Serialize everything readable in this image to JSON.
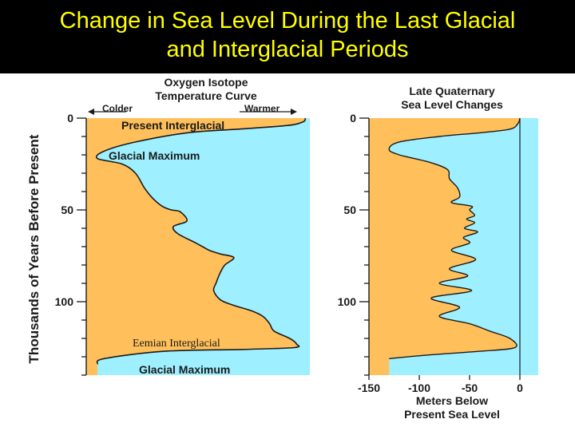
{
  "slide": {
    "title_line1": "Change in Sea Level During the Last Glacial",
    "title_line2": "and Interglacial Periods"
  },
  "y_axis_label": "Thousands of Years Before Present",
  "colors": {
    "warm_fill": "#ffc05c",
    "cool_fill": "#9eefff",
    "line": "#1a1a1a",
    "title_bg": "#000000",
    "title_text": "#ffff00"
  },
  "chart_data": [
    {
      "type": "area",
      "title_line1": "Oxygen Isotope",
      "title_line2": "Temperature Curve",
      "x_direction": {
        "left": "Colder",
        "right": "Warmer"
      },
      "y_ticks": [
        "0",
        "50",
        "100"
      ],
      "ylim": [
        0,
        140
      ],
      "x_range": [
        0,
        1
      ],
      "annotations": {
        "present": "Present Interglacial",
        "glacial1": "Glacial Maximum",
        "eemian": "Eemian Interglacial",
        "glacial2": "Glacial Maximum"
      },
      "series": [
        {
          "x": [
            0.98,
            0.97,
            0.9,
            0.68,
            0.45,
            0.22,
            0.08,
            0.05,
            0.16,
            0.22,
            0.26,
            0.3,
            0.34,
            0.38,
            0.42,
            0.45,
            0.39,
            0.41,
            0.49,
            0.52,
            0.55,
            0.6,
            0.66,
            0.62,
            0.6,
            0.58,
            0.57,
            0.6,
            0.66,
            0.74,
            0.79,
            0.82,
            0.84,
            0.91,
            0.94,
            0.93,
            0.7,
            0.35,
            0.08,
            0.05
          ],
          "y": [
            0,
            2,
            4,
            6,
            8,
            13,
            18,
            22,
            25,
            30,
            38,
            44,
            48,
            50,
            51,
            56,
            59,
            63,
            68,
            70,
            72,
            74,
            76,
            80,
            84,
            90,
            94,
            99,
            102,
            105,
            108,
            112,
            116,
            120,
            123,
            125,
            126,
            127,
            131,
            134
          ]
        }
      ]
    },
    {
      "type": "area",
      "title_line1": "Late Quaternary",
      "title_line2": "Sea Level Changes",
      "y_ticks": [
        "0",
        "50",
        "100"
      ],
      "x_ticks": [
        "-150",
        "-100",
        "-50",
        "0"
      ],
      "xlabel_line1": "Meters Below",
      "xlabel_line2": "Present Sea Level",
      "ylim": [
        0,
        140
      ],
      "xlim": [
        -150,
        0
      ],
      "series": [
        {
          "x": [
            0,
            -2,
            -10,
            -40,
            -80,
            -120,
            -130,
            -120,
            -90,
            -72,
            -70,
            -62,
            -60,
            -68,
            -48,
            -50,
            -45,
            -53,
            -45,
            -55,
            -42,
            -56,
            -50,
            -68,
            -44,
            -70,
            -52,
            -80,
            -48,
            -88,
            -60,
            -80,
            -50,
            -30,
            -10,
            -5,
            -40,
            -90,
            -130
          ],
          "y": [
            0,
            3,
            6,
            8,
            10,
            13,
            17,
            20,
            24,
            28,
            33,
            38,
            43,
            46,
            48,
            50,
            53,
            55,
            57,
            60,
            62,
            65,
            68,
            72,
            77,
            82,
            86,
            90,
            94,
            98,
            103,
            108,
            112,
            116,
            120,
            125,
            127,
            129,
            131
          ]
        }
      ]
    }
  ]
}
